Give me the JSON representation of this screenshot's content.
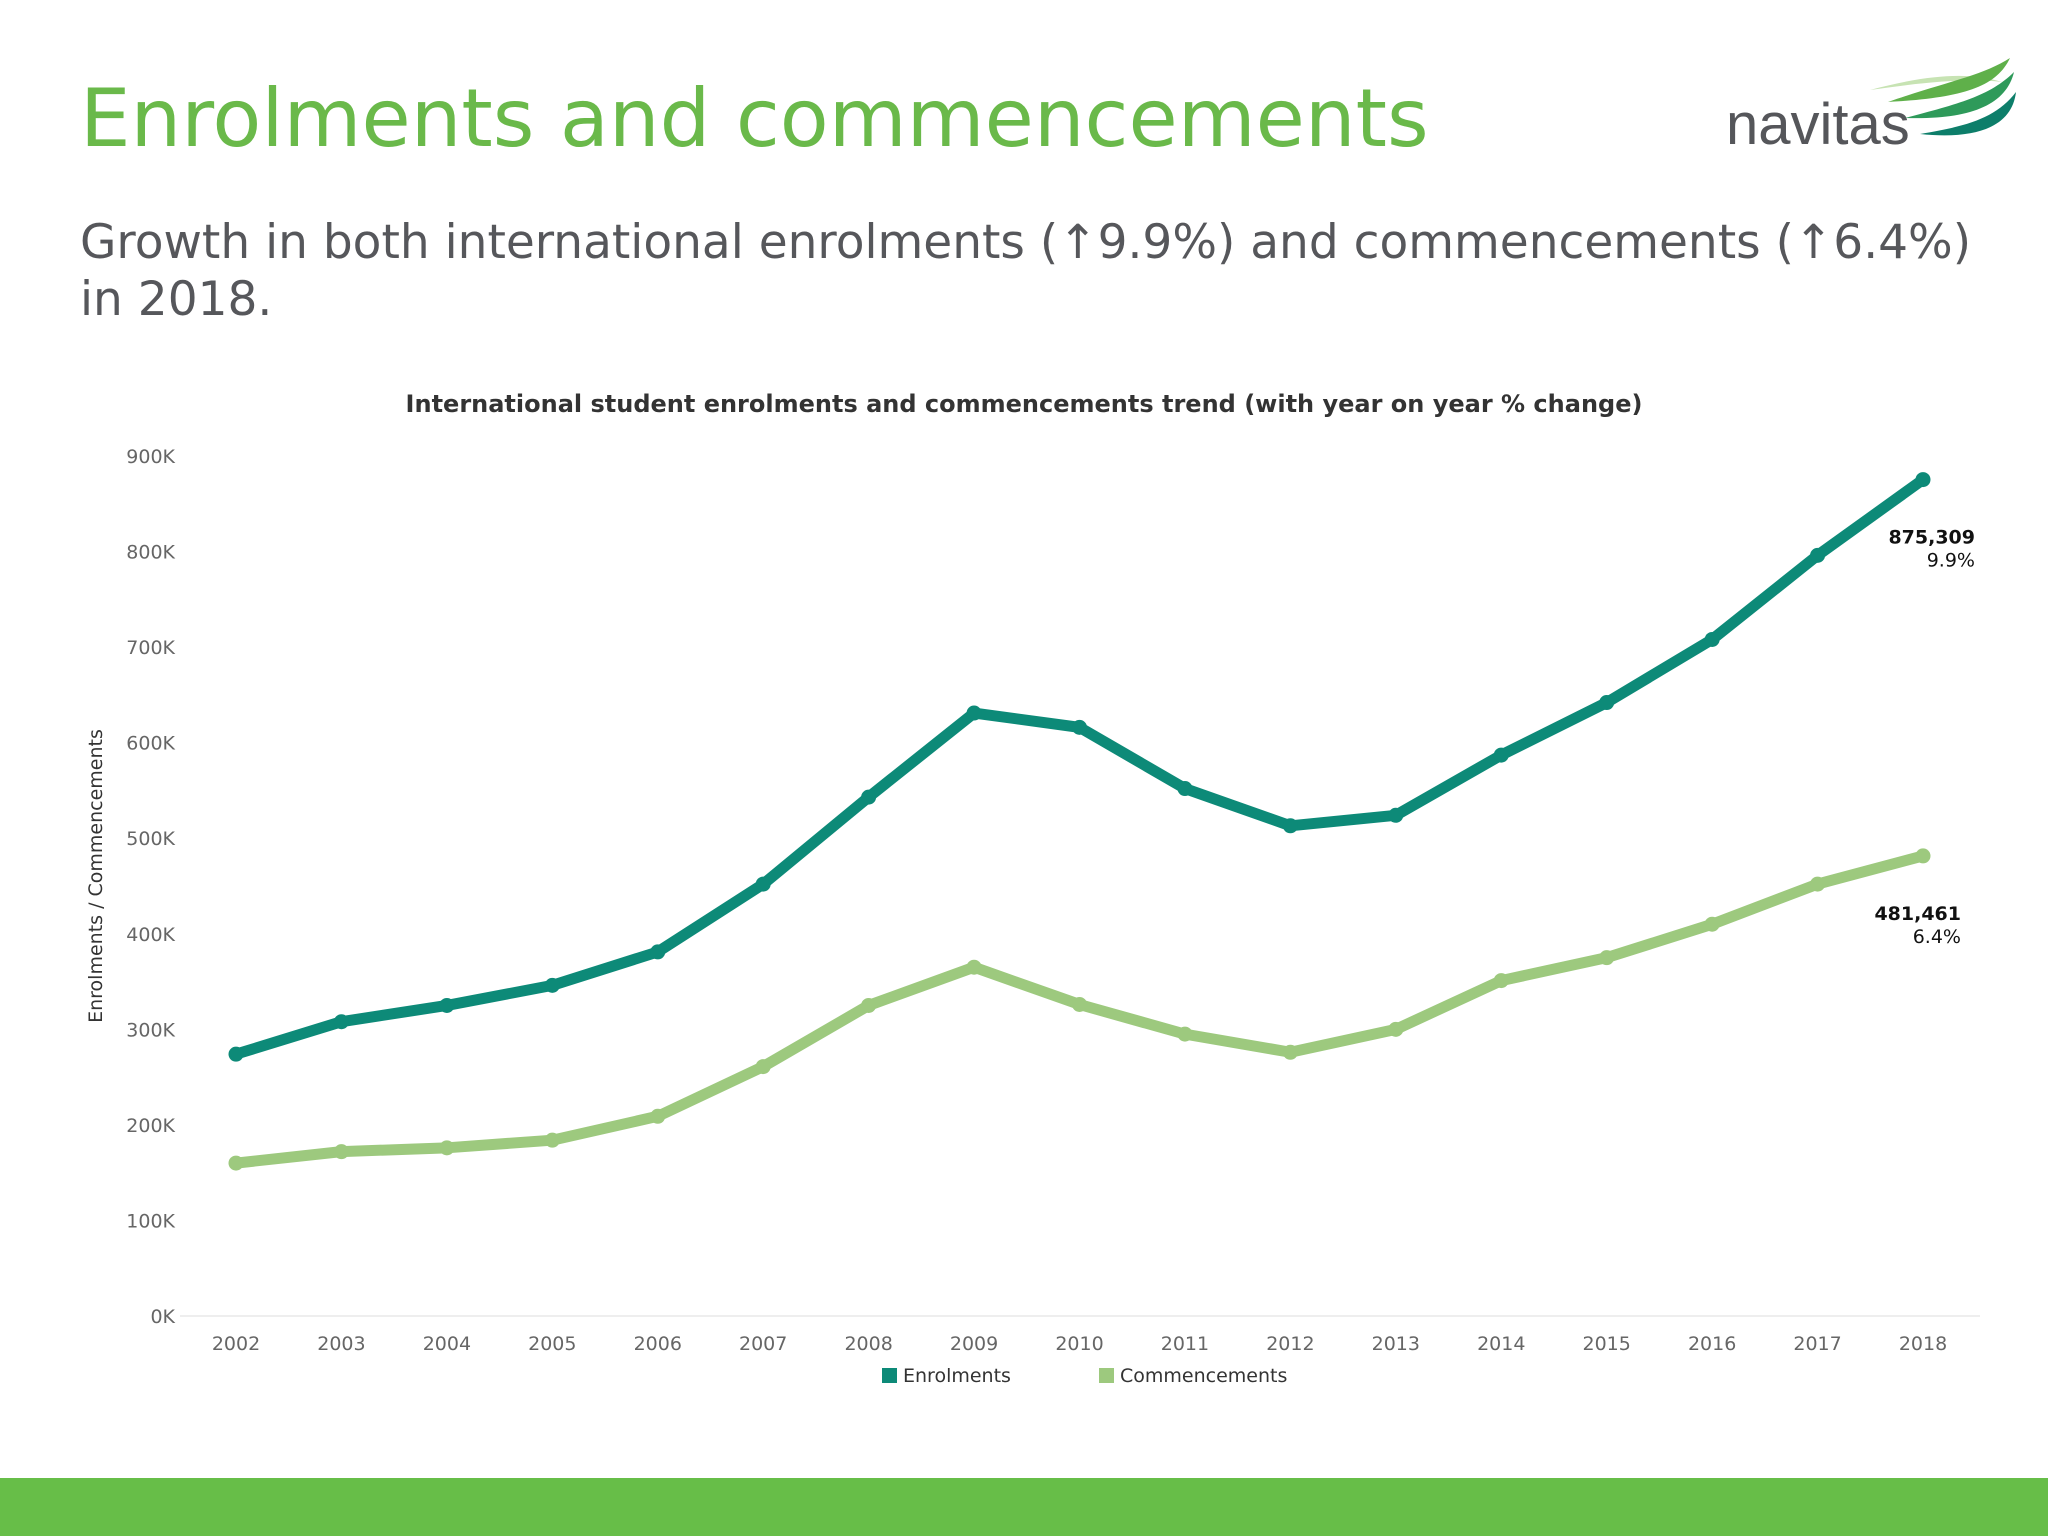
{
  "slide": {
    "title": "Enrolments and commencements",
    "subtitle": "Growth in both international enrolments (↑9.9%) and commencements (↑6.4%) in 2018.",
    "logo_text": "navitas",
    "footer_color": "#67be48"
  },
  "chart_data": {
    "type": "line",
    "title": "International student enrolments and commencements trend (with year on year % change)",
    "xlabel": "",
    "ylabel": "Enrolments / Commencements",
    "ylim": [
      0,
      900000
    ],
    "yticks": [
      "0K",
      "100K",
      "200K",
      "300K",
      "400K",
      "500K",
      "600K",
      "700K",
      "800K",
      "900K"
    ],
    "grid": false,
    "legend": "bottom-center",
    "x": [
      "2002",
      "2003",
      "2004",
      "2005",
      "2006",
      "2007",
      "2008",
      "2009",
      "2010",
      "2011",
      "2012",
      "2013",
      "2014",
      "2015",
      "2016",
      "2017",
      "2018"
    ],
    "series": [
      {
        "name": "Enrolments",
        "color": "#0d8a78",
        "values": [
          274000,
          308000,
          325000,
          346000,
          381000,
          452000,
          543000,
          631000,
          616000,
          552000,
          513000,
          524000,
          587000,
          642000,
          708000,
          796000,
          875309
        ],
        "end_label": "875,309",
        "end_change": "9.9%"
      },
      {
        "name": "Commencements",
        "color": "#9dc97e",
        "values": [
          160000,
          172000,
          176000,
          184000,
          209000,
          261000,
          325000,
          365000,
          326000,
          295000,
          276000,
          300000,
          351000,
          375000,
          410000,
          452000,
          481461
        ],
        "end_label": "481,461",
        "end_change": "6.4%"
      }
    ]
  }
}
